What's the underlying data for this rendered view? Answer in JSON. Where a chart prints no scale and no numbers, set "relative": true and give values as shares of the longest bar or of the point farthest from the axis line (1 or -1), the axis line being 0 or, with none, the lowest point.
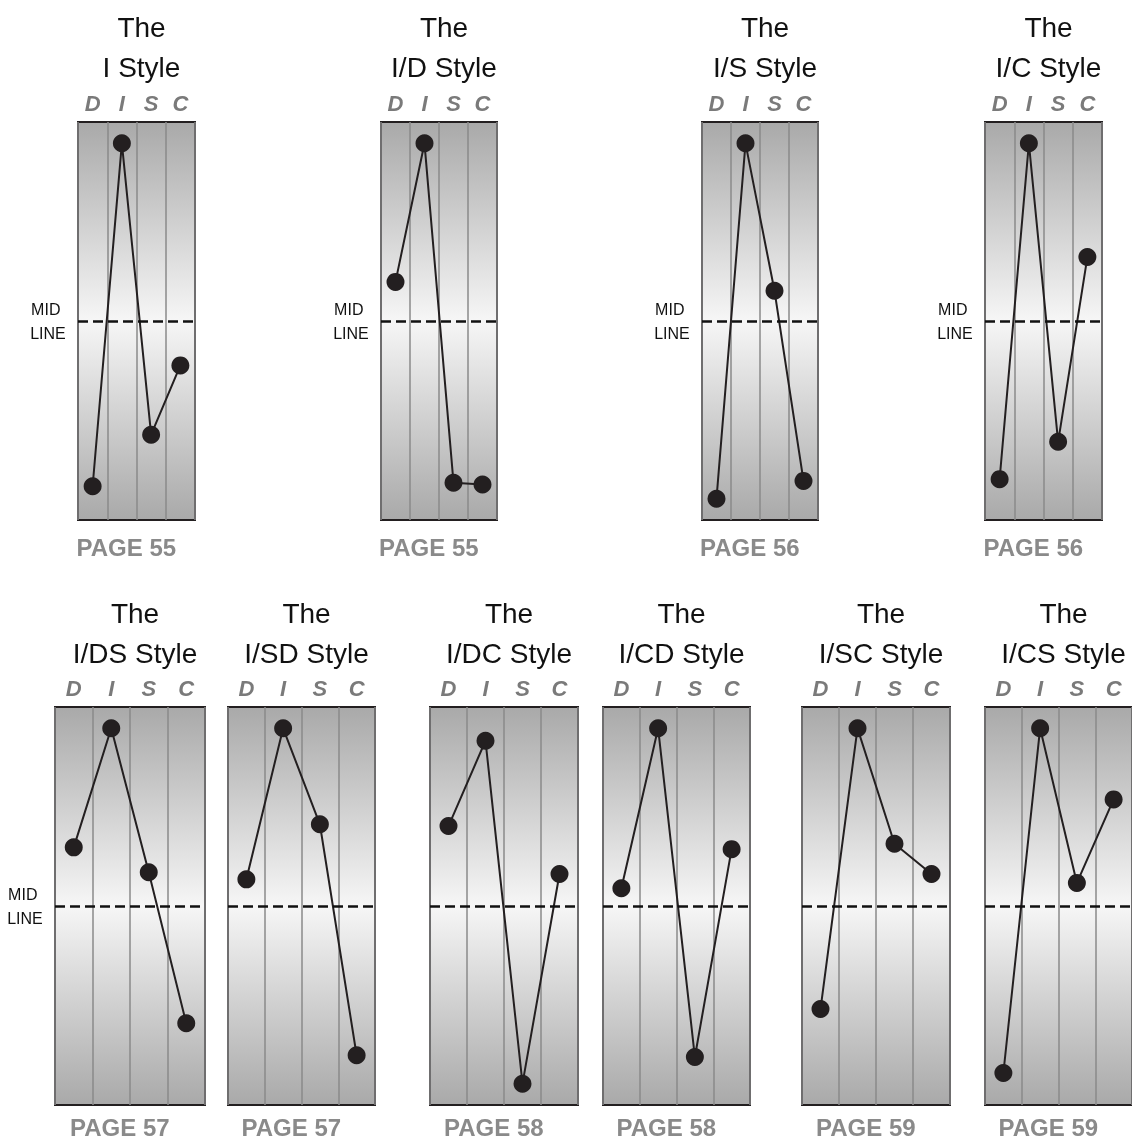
{
  "chart_data": [
    {
      "type": "line",
      "title": "The\nI Style",
      "categories": [
        "D",
        "I",
        "S",
        "C"
      ],
      "values": [
        -0.93,
        1,
        -0.64,
        -0.25
      ],
      "relative": true,
      "color": "#231f20",
      "marker": "circle",
      "line_style": "solid",
      "grid": "x",
      "ref_lines": [
        {
          "axis": "y",
          "value": 0,
          "label": "MID LINE",
          "line_style": "dashed"
        }
      ],
      "annotations": [
        "PAGE 55"
      ]
    },
    {
      "type": "line",
      "title": "The\nI/D Style",
      "categories": [
        "D",
        "I",
        "S",
        "C"
      ],
      "values": [
        0.22,
        1,
        -0.91,
        -0.92
      ],
      "relative": true,
      "color": "#231f20",
      "marker": "circle",
      "line_style": "solid",
      "grid": "x",
      "ref_lines": [
        {
          "axis": "y",
          "value": 0,
          "label": "MID LINE",
          "line_style": "dashed"
        }
      ],
      "annotations": [
        "PAGE 55"
      ]
    },
    {
      "type": "line",
      "title": "The\nI/S Style",
      "categories": [
        "D",
        "I",
        "S",
        "C"
      ],
      "values": [
        -1,
        1,
        0.17,
        -0.9
      ],
      "relative": true,
      "color": "#231f20",
      "marker": "circle",
      "line_style": "solid",
      "grid": "x",
      "ref_lines": [
        {
          "axis": "y",
          "value": 0,
          "label": "MID LINE",
          "line_style": "dashed"
        }
      ],
      "annotations": [
        "PAGE 56"
      ]
    },
    {
      "type": "line",
      "title": "The\nI/C Style",
      "categories": [
        "D",
        "I",
        "S",
        "C"
      ],
      "values": [
        -0.89,
        1,
        -0.68,
        0.36
      ],
      "relative": true,
      "color": "#231f20",
      "marker": "circle",
      "line_style": "solid",
      "grid": "x",
      "ref_lines": [
        {
          "axis": "y",
          "value": 0,
          "label": "MID LINE",
          "line_style": "dashed"
        }
      ],
      "annotations": [
        "PAGE 56"
      ]
    },
    {
      "type": "line",
      "title": "The\nI/DS Style",
      "categories": [
        "D",
        "I",
        "S",
        "C"
      ],
      "values": [
        0.33,
        1,
        0.19,
        -0.66
      ],
      "relative": true,
      "color": "#231f20",
      "marker": "circle",
      "line_style": "solid",
      "grid": "x",
      "ref_lines": [
        {
          "axis": "y",
          "value": 0,
          "label": "MID LINE",
          "line_style": "dashed"
        }
      ],
      "annotations": [
        "PAGE 57"
      ]
    },
    {
      "type": "line",
      "title": "The\nI/SD Style",
      "categories": [
        "D",
        "I",
        "S",
        "C"
      ],
      "values": [
        0.15,
        1,
        0.46,
        -0.84
      ],
      "relative": true,
      "color": "#231f20",
      "marker": "circle",
      "line_style": "solid",
      "grid": "x",
      "ref_lines": [
        {
          "axis": "y",
          "value": 0,
          "line_style": "dashed"
        }
      ],
      "annotations": [
        "PAGE 57"
      ]
    },
    {
      "type": "line",
      "title": "The\nI/DC Style",
      "categories": [
        "D",
        "I",
        "S",
        "C"
      ],
      "values": [
        0.45,
        0.93,
        -1,
        0.18
      ],
      "relative": true,
      "color": "#231f20",
      "marker": "circle",
      "line_style": "solid",
      "grid": "x",
      "ref_lines": [
        {
          "axis": "y",
          "value": 0,
          "line_style": "dashed"
        }
      ],
      "annotations": [
        "PAGE 58"
      ]
    },
    {
      "type": "line",
      "title": "The\nI/CD Style",
      "categories": [
        "D",
        "I",
        "S",
        "C"
      ],
      "values": [
        0.1,
        1,
        -0.85,
        0.32
      ],
      "relative": true,
      "color": "#231f20",
      "marker": "circle",
      "line_style": "solid",
      "grid": "x",
      "ref_lines": [
        {
          "axis": "y",
          "value": 0,
          "line_style": "dashed"
        }
      ],
      "annotations": [
        "PAGE 58"
      ]
    },
    {
      "type": "line",
      "title": "The\nI/SC Style",
      "categories": [
        "D",
        "I",
        "S",
        "C"
      ],
      "values": [
        -0.58,
        1,
        0.35,
        0.18
      ],
      "relative": true,
      "color": "#231f20",
      "marker": "circle",
      "line_style": "solid",
      "grid": "x",
      "ref_lines": [
        {
          "axis": "y",
          "value": 0,
          "line_style": "dashed"
        }
      ],
      "annotations": [
        "PAGE 59"
      ]
    },
    {
      "type": "line",
      "title": "The\nI/CS Style",
      "categories": [
        "D",
        "I",
        "S",
        "C"
      ],
      "values": [
        -0.94,
        1,
        0.13,
        0.6
      ],
      "relative": true,
      "color": "#231f20",
      "marker": "circle",
      "line_style": "solid",
      "grid": "x",
      "ref_lines": [
        {
          "axis": "y",
          "value": 0,
          "line_style": "dashed"
        }
      ],
      "annotations": [
        "PAGE 59"
      ]
    }
  ]
}
